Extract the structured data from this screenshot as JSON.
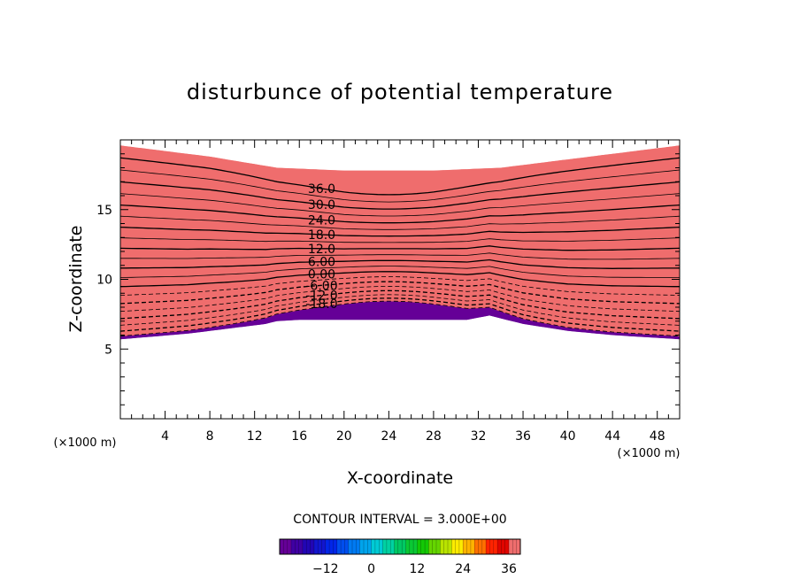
{
  "chart_data": {
    "type": "contour",
    "title": "disturbunce of potential temperature",
    "xlabel": "X-coordinate",
    "ylabel": "Z-coordinate",
    "x_unit": "(×1000 m)",
    "y_unit": "(×1000 m)",
    "xlim": [
      0,
      50
    ],
    "ylim": [
      0,
      20
    ],
    "x_ticks": [
      4,
      8,
      12,
      16,
      20,
      24,
      28,
      32,
      36,
      40,
      44,
      48
    ],
    "y_ticks": [
      5,
      10,
      15
    ],
    "contour_interval_text": "CONTOUR INTERVAL = 3.000E+00",
    "contour_interval": 3,
    "value_range": [
      -24,
      39
    ],
    "contour_labels": [
      "-18.0",
      "-12.0",
      "-6.00",
      "0.00",
      "6.00",
      "12.0",
      "18.0",
      "24.0",
      "30.0",
      "36.0"
    ],
    "colorbar": {
      "min": -24,
      "max": 39,
      "tick_values": [
        -12,
        0,
        12,
        24,
        36
      ],
      "tick_labels": [
        "−12",
        "0",
        "12",
        "24",
        "36"
      ]
    },
    "field_bottom_profile": [
      [
        0,
        5.7
      ],
      [
        6,
        6.1
      ],
      [
        11,
        6.6
      ],
      [
        13,
        6.8
      ],
      [
        14,
        7.0
      ],
      [
        16,
        7.1
      ],
      [
        24,
        7.1
      ],
      [
        31,
        7.1
      ],
      [
        33,
        7.4
      ],
      [
        34,
        7.2
      ],
      [
        36,
        6.8
      ],
      [
        40,
        6.3
      ],
      [
        44,
        6.0
      ],
      [
        50,
        5.7
      ]
    ],
    "field_top_profile": [
      [
        0,
        19.6
      ],
      [
        8,
        18.8
      ],
      [
        14,
        18.0
      ],
      [
        20,
        17.8
      ],
      [
        28,
        17.8
      ],
      [
        34,
        18.0
      ],
      [
        42,
        18.8
      ],
      [
        50,
        19.6
      ]
    ]
  }
}
